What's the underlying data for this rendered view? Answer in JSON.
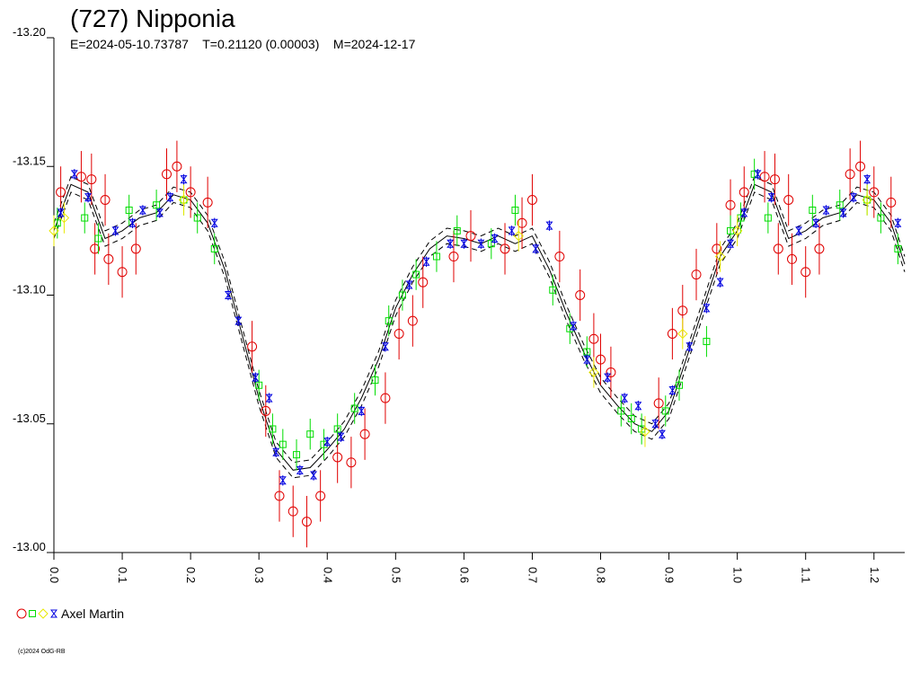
{
  "chart_data": {
    "type": "scatter",
    "title": "(727) Nipponia",
    "subtitle": "E=2024-05-10.73787    T=0.21120 (0.00003)    M=2024-12-17",
    "footer": "(c)2024 OdG-RB",
    "legend_label": "Axel Martin",
    "xlim": [
      0,
      1.245
    ],
    "xticks": [
      {
        "value": 0,
        "label": "0.0"
      },
      0.1,
      0.2,
      0.3,
      0.4,
      0.5,
      0.6,
      0.7,
      0.8,
      0.9,
      {
        "value": 1,
        "label": "1.0"
      },
      1.1,
      1.2
    ],
    "ylim": [
      -13.2,
      -13.0
    ],
    "yticks": [
      {
        "value": -13.2,
        "label": "-13.20"
      },
      -13.15,
      {
        "value": -13.1,
        "label": "-13.10"
      },
      -13.05,
      {
        "value": -13.0,
        "label": "-13.00"
      }
    ],
    "fit": {
      "color": "#000000",
      "band": 0.003,
      "x": [
        0,
        0.025,
        0.05,
        0.075,
        0.1,
        0.125,
        0.15,
        0.175,
        0.2,
        0.225,
        0.25,
        0.275,
        0.3,
        0.325,
        0.35,
        0.375,
        0.4,
        0.425,
        0.45,
        0.475,
        0.5,
        0.525,
        0.55,
        0.575,
        0.6,
        0.625,
        0.65,
        0.675,
        0.7,
        0.725,
        0.75,
        0.775,
        0.8,
        0.825,
        0.85,
        0.875,
        0.9,
        0.925,
        0.95,
        0.975,
        1.0,
        1.025,
        1.05,
        1.075,
        1.1,
        1.125,
        1.15,
        1.175,
        1.2,
        1.225,
        1.245
      ],
      "y": [
        -13.125,
        -13.143,
        -13.14,
        -13.122,
        -13.125,
        -13.13,
        -13.132,
        -13.139,
        -13.137,
        -13.128,
        -13.11,
        -13.085,
        -13.06,
        -13.04,
        -13.032,
        -13.033,
        -13.04,
        -13.048,
        -13.06,
        -13.075,
        -13.095,
        -13.108,
        -13.118,
        -13.123,
        -13.122,
        -13.12,
        -13.123,
        -13.12,
        -13.123,
        -13.11,
        -13.093,
        -13.078,
        -13.065,
        -13.057,
        -13.05,
        -13.047,
        -13.055,
        -13.075,
        -13.095,
        -13.115,
        -13.125,
        -13.143,
        -13.14,
        -13.122,
        -13.125,
        -13.13,
        -13.132,
        -13.139,
        -13.137,
        -13.128,
        -13.112
      ]
    },
    "series": [
      {
        "marker": "circle",
        "color": "#e00000",
        "yerr": 0.01,
        "x": [
          0.01,
          0.04,
          0.055,
          0.06,
          0.075,
          0.08,
          0.1,
          0.12,
          0.165,
          0.18,
          0.2,
          0.225,
          0.29,
          0.31,
          0.33,
          0.35,
          0.37,
          0.39,
          0.415,
          0.435,
          0.455,
          0.485,
          0.505,
          0.525,
          0.54,
          0.585,
          0.61,
          0.66,
          0.685,
          0.7,
          0.74,
          0.77,
          0.79,
          0.8,
          0.815,
          0.885,
          0.905,
          0.92,
          0.94,
          0.97,
          0.99,
          1.01,
          1.04,
          1.055,
          1.06,
          1.075,
          1.08,
          1.1,
          1.12,
          1.165,
          1.18,
          1.2,
          1.225
        ],
        "y": [
          -13.14,
          -13.146,
          -13.145,
          -13.118,
          -13.137,
          -13.114,
          -13.109,
          -13.118,
          -13.147,
          -13.15,
          -13.14,
          -13.136,
          -13.08,
          -13.055,
          -13.022,
          -13.016,
          -13.012,
          -13.022,
          -13.037,
          -13.035,
          -13.046,
          -13.06,
          -13.085,
          -13.09,
          -13.105,
          -13.115,
          -13.123,
          -13.118,
          -13.128,
          -13.137,
          -13.115,
          -13.1,
          -13.083,
          -13.075,
          -13.07,
          -13.058,
          -13.085,
          -13.094,
          -13.108,
          -13.118,
          -13.135,
          -13.14,
          -13.146,
          -13.145,
          -13.118,
          -13.137,
          -13.114,
          -13.109,
          -13.118,
          -13.147,
          -13.15,
          -13.14,
          -13.136
        ]
      },
      {
        "marker": "square",
        "color": "#00dd00",
        "yerr": 0.006,
        "x": [
          0.005,
          0.045,
          0.065,
          0.11,
          0.15,
          0.19,
          0.21,
          0.235,
          0.3,
          0.32,
          0.335,
          0.355,
          0.375,
          0.395,
          0.415,
          0.44,
          0.47,
          0.49,
          0.51,
          0.53,
          0.56,
          0.59,
          0.64,
          0.675,
          0.73,
          0.755,
          0.78,
          0.83,
          0.845,
          0.86,
          0.895,
          0.915,
          0.955,
          0.99,
          1.005,
          1.025,
          1.045,
          1.11,
          1.15,
          1.19,
          1.21,
          1.235
        ],
        "y": [
          -13.128,
          -13.13,
          -13.122,
          -13.133,
          -13.135,
          -13.137,
          -13.13,
          -13.118,
          -13.065,
          -13.048,
          -13.042,
          -13.038,
          -13.046,
          -13.042,
          -13.048,
          -13.056,
          -13.067,
          -13.09,
          -13.1,
          -13.108,
          -13.115,
          -13.125,
          -13.12,
          -13.133,
          -13.102,
          -13.087,
          -13.078,
          -13.055,
          -13.052,
          -13.048,
          -13.055,
          -13.065,
          -13.082,
          -13.125,
          -13.13,
          -13.147,
          -13.13,
          -13.133,
          -13.135,
          -13.137,
          -13.13,
          -13.118
        ]
      },
      {
        "marker": "diamond",
        "color": "#e8e800",
        "yerr": 0.006,
        "x": [
          0,
          0.015,
          0.19,
          0.68,
          0.79,
          0.865,
          0.92,
          0.975,
          1.0,
          1.19
        ],
        "y": [
          -13.125,
          -13.13,
          -13.137,
          -13.123,
          -13.07,
          -13.047,
          -13.085,
          -13.115,
          -13.125,
          -13.137
        ]
      },
      {
        "marker": "hourglass",
        "color": "#0000e0",
        "yerr": 0.002,
        "x": [
          0.01,
          0.03,
          0.05,
          0.09,
          0.115,
          0.13,
          0.155,
          0.17,
          0.19,
          0.235,
          0.255,
          0.27,
          0.295,
          0.315,
          0.325,
          0.335,
          0.36,
          0.38,
          0.4,
          0.42,
          0.45,
          0.485,
          0.52,
          0.545,
          0.58,
          0.6,
          0.625,
          0.645,
          0.67,
          0.705,
          0.725,
          0.76,
          0.78,
          0.81,
          0.835,
          0.855,
          0.88,
          0.89,
          0.905,
          0.93,
          0.955,
          0.975,
          0.99,
          1.01,
          1.03,
          1.05,
          1.09,
          1.115,
          1.13,
          1.155,
          1.17,
          1.19,
          1.235
        ],
        "y": [
          -13.132,
          -13.147,
          -13.138,
          -13.125,
          -13.128,
          -13.133,
          -13.132,
          -13.138,
          -13.145,
          -13.128,
          -13.1,
          -13.09,
          -13.068,
          -13.06,
          -13.039,
          -13.028,
          -13.032,
          -13.03,
          -13.043,
          -13.045,
          -13.055,
          -13.08,
          -13.104,
          -13.113,
          -13.12,
          -13.12,
          -13.12,
          -13.122,
          -13.125,
          -13.118,
          -13.127,
          -13.088,
          -13.075,
          -13.068,
          -13.06,
          -13.057,
          -13.05,
          -13.046,
          -13.063,
          -13.08,
          -13.095,
          -13.105,
          -13.12,
          -13.132,
          -13.147,
          -13.138,
          -13.125,
          -13.128,
          -13.133,
          -13.132,
          -13.138,
          -13.145,
          -13.128
        ]
      }
    ]
  }
}
